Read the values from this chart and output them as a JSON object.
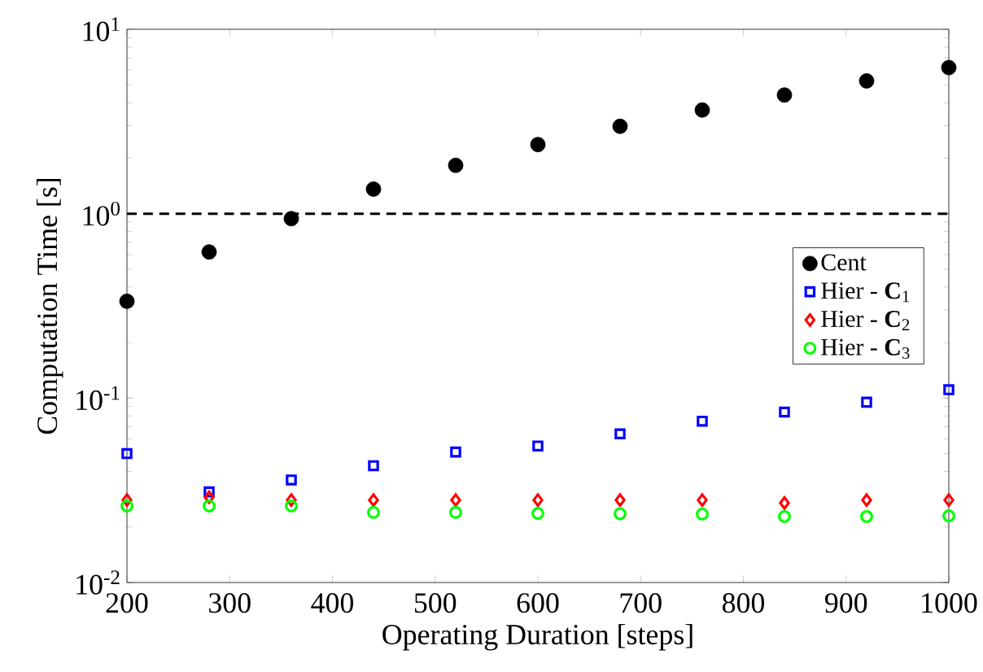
{
  "chart_data": {
    "type": "scatter",
    "xlabel": "Operating Duration [steps]",
    "ylabel": "Computation Time [s]",
    "x": [
      200,
      280,
      360,
      440,
      520,
      600,
      680,
      760,
      840,
      920,
      1000
    ],
    "series": [
      {
        "name": "Cent",
        "color": "#000000",
        "marker": "circle",
        "values": [
          0.335,
          0.62,
          0.94,
          1.36,
          1.83,
          2.37,
          2.98,
          3.65,
          4.4,
          5.25,
          6.2
        ]
      },
      {
        "name": "Hier - **C**$_{1}$",
        "color": "#0000ff",
        "marker": "square",
        "values": [
          0.05,
          0.031,
          0.036,
          0.043,
          0.051,
          0.055,
          0.064,
          0.075,
          0.084,
          0.095,
          0.111
        ]
      },
      {
        "name": "Hier - **C**$_{2}$",
        "color": "#ff0000",
        "marker": "diamond",
        "values": [
          0.028,
          0.029,
          0.028,
          0.028,
          0.028,
          0.028,
          0.028,
          0.028,
          0.027,
          0.028,
          0.028
        ]
      },
      {
        "name": "Hier - **C**$_{3}$",
        "color": "#00ff00",
        "marker": "circle",
        "values": [
          0.026,
          0.026,
          0.026,
          0.024,
          0.024,
          0.0237,
          0.0236,
          0.0235,
          0.0228,
          0.0228,
          0.023
        ]
      }
    ],
    "xlim": [
      200,
      1000
    ],
    "xticks": [
      200,
      300,
      400,
      500,
      600,
      700,
      800,
      900,
      1000
    ],
    "ylim": [
      0.01,
      10
    ],
    "log": "y",
    "yticks": [
      {
        "value": 0.01,
        "label": "10$^{-2}$"
      },
      {
        "value": 0.1,
        "label": "10$^{-1}$"
      },
      {
        "value": 1,
        "label": "10$^{0}$"
      },
      {
        "value": 10,
        "label": "10$^{1}$"
      }
    ],
    "ref_lines": [
      {
        "axis": "y",
        "value": 1,
        "color": "#000000",
        "line_style": "dashed"
      }
    ],
    "grid": false,
    "legend": "right"
  }
}
